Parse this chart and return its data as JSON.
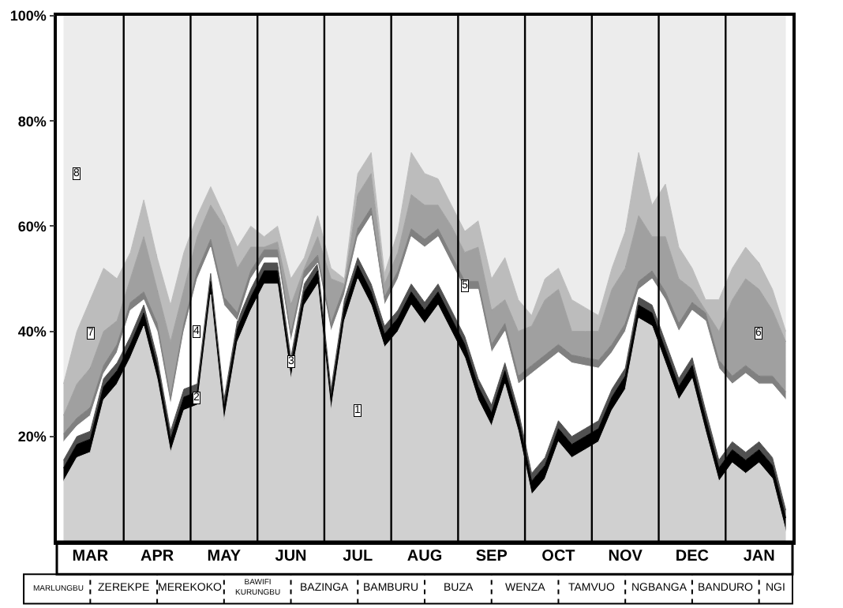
{
  "chart_data": {
    "type": "area",
    "stacked": true,
    "categories": [
      null,
      null,
      "MAR",
      null,
      null,
      null,
      null,
      "APR",
      null,
      null,
      null,
      null,
      "MAY",
      null,
      null,
      null,
      null,
      "JUN",
      null,
      null,
      null,
      null,
      "JUL",
      null,
      null,
      null,
      null,
      "AUG",
      null,
      null,
      null,
      null,
      "SEP",
      null,
      null,
      null,
      null,
      "OCT",
      null,
      null,
      null,
      null,
      "NOV",
      null,
      null,
      null,
      null,
      "DEC",
      null,
      null,
      null,
      null,
      "JAN",
      null,
      null
    ],
    "series": [
      {
        "name": "1",
        "color": "#d0d0d0",
        "values": [
          11.5,
          16,
          17,
          27,
          30,
          35,
          41,
          31,
          17,
          25,
          26,
          47,
          23,
          38,
          44,
          49,
          49,
          31,
          45,
          49,
          25,
          42,
          50,
          45,
          37,
          40,
          45,
          41.5,
          45,
          40,
          35,
          27,
          22,
          30,
          21,
          9,
          12,
          19,
          16,
          17.5,
          19,
          25,
          29,
          42.5,
          41,
          34,
          27,
          31,
          21,
          11.5,
          15,
          13,
          15,
          12,
          2
        ]
      },
      {
        "name": "2",
        "color": "#000000",
        "values": [
          2.5,
          2.5,
          2.5,
          2.5,
          2.5,
          2.5,
          2.5,
          2.5,
          2.5,
          2.5,
          2.5,
          2.5,
          2.5,
          2.5,
          2.5,
          2.5,
          2.5,
          2.5,
          2.5,
          2.5,
          2.5,
          2.5,
          2.5,
          2.5,
          2.5,
          2.5,
          2.5,
          2.5,
          2.5,
          2.5,
          2.5,
          2.5,
          2.5,
          2.5,
          2.5,
          2.5,
          2.5,
          2.5,
          2.5,
          2.5,
          2.5,
          2.5,
          2.5,
          2.5,
          2.5,
          2.5,
          2.5,
          2.5,
          2.5,
          2.5,
          2.5,
          2.5,
          2.5,
          2.5,
          2.5
        ]
      },
      {
        "name": "3",
        "color": "#505050",
        "values": [
          1.5,
          1.5,
          1.5,
          1.5,
          1.5,
          1.5,
          1.5,
          1.5,
          1.5,
          1.5,
          1.5,
          1.5,
          1.5,
          1.5,
          1.5,
          1.5,
          1.5,
          1.5,
          1.5,
          1.5,
          1.5,
          1.5,
          1.5,
          1.5,
          1.5,
          1.5,
          1.5,
          1.5,
          1.5,
          1.5,
          1.5,
          1.5,
          1.5,
          1.5,
          1.5,
          1.5,
          1.5,
          1.5,
          1.5,
          1.5,
          1.5,
          1.5,
          1.5,
          1.5,
          1.5,
          1.5,
          1.5,
          1.5,
          1.5,
          1.5,
          1.5,
          1.5,
          1.5,
          1.5,
          1.5
        ]
      },
      {
        "name": "4",
        "color": "#ffffff",
        "values": [
          3.5,
          2,
          3,
          1,
          2,
          5,
          1,
          5,
          5,
          11,
          20,
          5,
          18,
          0,
          2,
          1,
          1,
          3,
          1,
          0,
          11,
          1,
          4,
          13,
          4,
          6,
          9,
          10.5,
          9,
          9,
          9,
          17,
          10,
          6,
          5,
          19,
          18,
          13,
          14,
          12,
          10,
          7,
          7,
          1.5,
          5,
          8,
          9,
          9,
          17,
          17.5,
          11,
          15,
          11,
          14,
          21
        ]
      },
      {
        "name": "5",
        "color": "#808080",
        "values": [
          1.5,
          1.5,
          1.5,
          1.5,
          1.5,
          1.5,
          1.5,
          1.5,
          1.5,
          1.5,
          1.5,
          1.5,
          1.5,
          1.5,
          1.5,
          1.5,
          1.5,
          1.5,
          1.5,
          1.5,
          1.5,
          1.5,
          1.5,
          1.5,
          1.5,
          1.5,
          1.5,
          1.5,
          1.5,
          1.5,
          1.5,
          1.5,
          1.5,
          1.5,
          1.5,
          1.5,
          1.5,
          1.5,
          1.5,
          1.5,
          1.5,
          1.5,
          1.5,
          1.5,
          1.5,
          1.5,
          1.5,
          1.5,
          1.5,
          1.5,
          1.5,
          1.5,
          1.5,
          1.5,
          1.5
        ]
      },
      {
        "name": "6",
        "color": "#a0a0a0",
        "values": [
          3.5,
          6.5,
          7.5,
          6.5,
          4.5,
          4.5,
          10.5,
          6.5,
          10.5,
          6.5,
          6.5,
          6.5,
          13.5,
          8.5,
          4.5,
          0.5,
          1.5,
          5.5,
          0.5,
          3.5,
          8.5,
          0.5,
          6.5,
          6.5,
          2.5,
          3.5,
          6.5,
          6.5,
          4.5,
          5.5,
          5.5,
          6.5,
          6.5,
          4.5,
          8.5,
          7.5,
          10.5,
          10.5,
          4.5,
          5,
          5.5,
          10.5,
          10.5,
          12.5,
          6.5,
          10.5,
          8.5,
          2.5,
          0.5,
          5.5,
          14.5,
          16.5,
          16.5,
          12.5,
          9.5
        ]
      },
      {
        "name": "7",
        "color": "#bcbcbc",
        "values": [
          6,
          10,
          13,
          12,
          8,
          5,
          7,
          6,
          7,
          7,
          4,
          3.5,
          2,
          4,
          4,
          2,
          3,
          5,
          2,
          4,
          2,
          1,
          4,
          4,
          2,
          4,
          8,
          6,
          5,
          4,
          4,
          5,
          6,
          8,
          6,
          2,
          4,
          4,
          6,
          4.5,
          3,
          4,
          7,
          12,
          6,
          10,
          6,
          4,
          2,
          6,
          6,
          6,
          5,
          4,
          2
        ]
      },
      {
        "name": "8",
        "color": "#ececec",
        "values": [
          70,
          60,
          54,
          48,
          50,
          45,
          35,
          46,
          55,
          45,
          38,
          32.5,
          38,
          44,
          40,
          42,
          40,
          50,
          46,
          38,
          48,
          50,
          30,
          26,
          49,
          41,
          26,
          30,
          31,
          36,
          41,
          39,
          50,
          46,
          54,
          57,
          50,
          48,
          54,
          55.5,
          57,
          48,
          41,
          26,
          36,
          32,
          44,
          48,
          54,
          54,
          48,
          44,
          47,
          52,
          60
        ]
      }
    ],
    "annotations": [
      "MARLUNGBU",
      "ZEREKPE",
      "MEREKOKO",
      "BAWIFI\nKURUNGBU",
      "BAZINGA",
      "BAMBURU",
      "BUZA",
      "WENZA",
      "TAMVUO",
      "NGBANGA",
      "BANDURO",
      "NGI"
    ],
    "grid": "x",
    "ylim": [
      0,
      100
    ],
    "yticks": [
      {
        "value": 20,
        "label": "20%"
      },
      {
        "value": 40,
        "label": "40%"
      },
      {
        "value": 60,
        "label": "60%"
      },
      {
        "value": 80,
        "label": "80%"
      },
      {
        "value": 100,
        "label": "100%"
      }
    ],
    "legend": false
  }
}
